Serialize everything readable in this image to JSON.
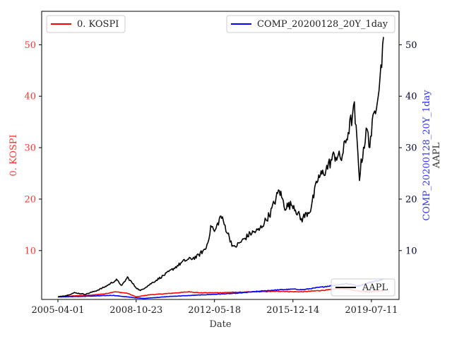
{
  "colors": {
    "kospi": "#ff0000",
    "comp": "#0000ff",
    "aapl": "#000000",
    "left_axis_text": "#ff3333",
    "right_axis_text": "#3333ff",
    "tick_right": "#000033"
  },
  "chart_data": {
    "type": "line",
    "title": "",
    "xlabel": "Date",
    "x_ticks": [
      "2005-04-01",
      "2008-10-23",
      "2012-05-18",
      "2015-12-14",
      "2019-07-11"
    ],
    "x_range": [
      "2005-04-01",
      "2020-01-28"
    ],
    "left_axis": {
      "label": "0. KOSPI",
      "ticks": [
        10,
        20,
        30,
        40,
        50
      ],
      "ylim": [
        0.5,
        56.5
      ]
    },
    "right_axis": {
      "label_line1": "COMP_20200128_20Y_1day",
      "label_line2": "AAPL",
      "ticks": [
        10,
        20,
        30,
        40,
        50
      ],
      "ylim": [
        0.5,
        56.5
      ]
    },
    "legend_left": {
      "placement": "top-left",
      "entries": [
        "0. KOSPI"
      ]
    },
    "legend_right": {
      "placement": "top-right",
      "entries": [
        "COMP_20200128_20Y_1day"
      ]
    },
    "legend_lower": {
      "placement": "bottom-right",
      "entries": [
        "AAPL"
      ]
    },
    "series": [
      {
        "name": "0. KOSPI",
        "axis": "left",
        "color": "#ff0000",
        "points": [
          [
            "2005-04-01",
            1.0
          ],
          [
            "2006-01-01",
            1.2
          ],
          [
            "2006-09-01",
            1.3
          ],
          [
            "2007-06-01",
            1.6
          ],
          [
            "2007-11-01",
            2.0
          ],
          [
            "2008-06-01",
            1.7
          ],
          [
            "2008-10-23",
            1.0
          ],
          [
            "2009-06-01",
            1.4
          ],
          [
            "2010-06-01",
            1.7
          ],
          [
            "2011-04-01",
            2.0
          ],
          [
            "2011-09-01",
            1.8
          ],
          [
            "2012-05-18",
            1.8
          ],
          [
            "2013-06-01",
            1.9
          ],
          [
            "2014-06-01",
            2.0
          ],
          [
            "2015-06-01",
            2.1
          ],
          [
            "2015-12-14",
            2.0
          ],
          [
            "2016-06-01",
            2.0
          ],
          [
            "2017-06-01",
            2.3
          ],
          [
            "2018-01-01",
            2.6
          ],
          [
            "2018-06-01",
            2.5
          ],
          [
            "2019-01-01",
            2.1
          ],
          [
            "2019-07-11",
            2.0
          ],
          [
            "2020-01-28",
            2.2
          ]
        ]
      },
      {
        "name": "COMP_20200128_20Y_1day",
        "axis": "right",
        "color": "#0000ff",
        "points": [
          [
            "2005-04-01",
            1.0
          ],
          [
            "2006-06-01",
            1.1
          ],
          [
            "2007-10-01",
            1.3
          ],
          [
            "2008-10-23",
            0.8
          ],
          [
            "2009-03-01",
            0.7
          ],
          [
            "2010-06-01",
            1.1
          ],
          [
            "2011-06-01",
            1.3
          ],
          [
            "2012-05-18",
            1.5
          ],
          [
            "2013-06-01",
            1.7
          ],
          [
            "2014-06-01",
            2.1
          ],
          [
            "2015-06-01",
            2.4
          ],
          [
            "2015-12-14",
            2.5
          ],
          [
            "2016-06-01",
            2.4
          ],
          [
            "2017-06-01",
            3.0
          ],
          [
            "2018-06-01",
            3.6
          ],
          [
            "2018-12-01",
            3.1
          ],
          [
            "2019-07-11",
            3.9
          ],
          [
            "2020-01-28",
            4.4
          ]
        ]
      },
      {
        "name": "AAPL",
        "axis": "right",
        "color": "#000000",
        "points": [
          [
            "2005-04-01",
            1.0
          ],
          [
            "2005-09-01",
            1.3
          ],
          [
            "2006-01-01",
            1.8
          ],
          [
            "2006-07-01",
            1.5
          ],
          [
            "2007-01-01",
            2.2
          ],
          [
            "2007-06-01",
            3.0
          ],
          [
            "2007-12-01",
            4.3
          ],
          [
            "2008-03-01",
            3.2
          ],
          [
            "2008-06-01",
            4.8
          ],
          [
            "2008-10-23",
            2.8
          ],
          [
            "2009-01-01",
            2.2
          ],
          [
            "2009-07-01",
            3.6
          ],
          [
            "2010-01-01",
            5.0
          ],
          [
            "2010-06-01",
            6.2
          ],
          [
            "2011-01-01",
            8.0
          ],
          [
            "2011-08-01",
            8.8
          ],
          [
            "2012-01-01",
            10.5
          ],
          [
            "2012-04-01",
            15.0
          ],
          [
            "2012-05-18",
            13.5
          ],
          [
            "2012-09-01",
            16.8
          ],
          [
            "2013-04-01",
            10.5
          ],
          [
            "2013-09-01",
            12.0
          ],
          [
            "2014-01-01",
            13.3
          ],
          [
            "2014-06-01",
            14.0
          ],
          [
            "2014-12-01",
            17.2
          ],
          [
            "2015-05-01",
            21.8
          ],
          [
            "2015-08-01",
            18.5
          ],
          [
            "2015-12-14",
            19.0
          ],
          [
            "2016-05-01",
            16.0
          ],
          [
            "2016-10-01",
            18.0
          ],
          [
            "2017-02-01",
            24.0
          ],
          [
            "2017-06-01",
            25.5
          ],
          [
            "2017-11-01",
            28.5
          ],
          [
            "2018-03-01",
            28.0
          ],
          [
            "2018-08-01",
            35.0
          ],
          [
            "2018-10-01",
            37.5
          ],
          [
            "2018-12-25",
            24.5
          ],
          [
            "2019-03-01",
            30.0
          ],
          [
            "2019-05-01",
            33.5
          ],
          [
            "2019-06-01",
            30.5
          ],
          [
            "2019-07-11",
            33.0
          ],
          [
            "2019-10-01",
            39.0
          ],
          [
            "2019-12-15",
            45.0
          ],
          [
            "2020-01-28",
            51.5
          ]
        ]
      }
    ]
  }
}
